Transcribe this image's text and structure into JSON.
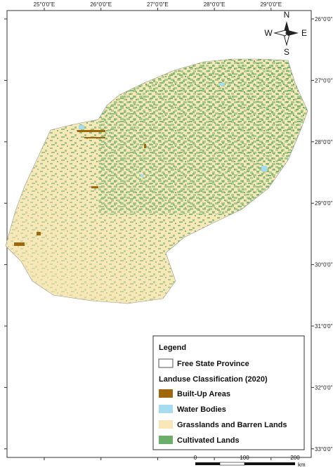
{
  "map": {
    "lon_labels": [
      "25°0'0\"E",
      "26°0'0\"E",
      "27°0'0\"E",
      "28°0'0\"E",
      "29°0'0\"E"
    ],
    "lat_labels": [
      "26°0'0\"S",
      "27°0'0\"S",
      "28°0'0\"S",
      "29°0'0\"S",
      "30°0'0\"S",
      "31°0'0\"S",
      "32°0'0\"S",
      "33°0'0\"S"
    ],
    "compass": {
      "north": "N",
      "south": "S",
      "east": "E",
      "west": "W"
    },
    "legend": {
      "title": "Legend",
      "boundary": "Free State Province",
      "subtitle": "Landuse Classification (2020)",
      "items": [
        {
          "label": "Built-Up Areas",
          "color": "#a0660a"
        },
        {
          "label": "Water Bodies",
          "color": "#a6dcf0"
        },
        {
          "label": "Grasslands and Barren Lands",
          "color": "#f8e8b8"
        },
        {
          "label": "Cultivated Lands",
          "color": "#6aae6a"
        }
      ]
    },
    "scale_bar": {
      "labels": [
        "0",
        "100",
        "200"
      ],
      "unit": "km"
    }
  }
}
